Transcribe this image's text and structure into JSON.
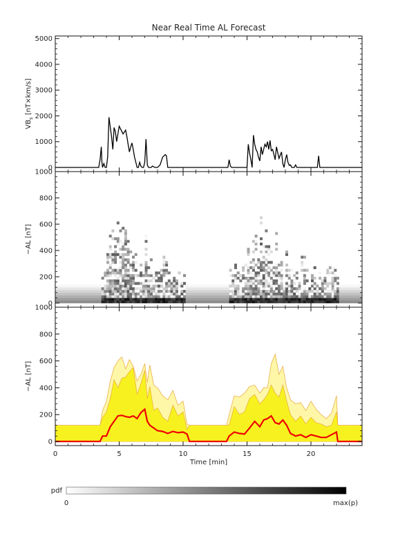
{
  "title": "Near Real Time AL Forecast",
  "colorbar": {
    "label": "pdf",
    "min_label": "0",
    "max_label": "max(p)"
  },
  "colors": {
    "line": "#000000",
    "median": "#ee0000",
    "band_inner": "#f7f21f",
    "band_mid": "#fff7a8",
    "band_outer": "#e8a63a"
  },
  "chart_data": [
    {
      "id": "vbs",
      "type": "line",
      "title": "Near Real Time AL Forecast",
      "ylabel": "VB_s [nT×km/s]",
      "ylabel_main": "VB",
      "ylabel_sub": "s",
      "ylabel_rest": " [nT×km/s]",
      "xlabel": "",
      "xlim": [
        0,
        24
      ],
      "ylim": [
        0,
        5100
      ],
      "yticks": [
        0,
        1000,
        2000,
        3000,
        4000,
        5000
      ],
      "x": [
        0,
        3.4,
        3.5,
        3.6,
        3.65,
        3.7,
        3.8,
        3.9,
        4.0,
        4.1,
        4.2,
        4.4,
        4.5,
        4.6,
        4.7,
        4.8,
        5.0,
        5.2,
        5.3,
        5.5,
        5.6,
        5.7,
        5.8,
        5.9,
        6.0,
        6.1,
        6.2,
        6.3,
        6.4,
        6.5,
        6.6,
        6.7,
        6.8,
        6.9,
        7.0,
        7.1,
        7.2,
        7.3,
        7.35,
        7.4,
        7.5,
        7.6,
        7.8,
        8.0,
        8.2,
        8.4,
        8.6,
        8.7,
        8.8,
        8.9,
        9.0,
        9.2,
        13.5,
        13.6,
        13.7,
        13.8,
        15.0,
        15.1,
        15.2,
        15.3,
        15.4,
        15.5,
        15.6,
        15.7,
        15.8,
        15.9,
        16.0,
        16.1,
        16.2,
        16.3,
        16.4,
        16.5,
        16.6,
        16.7,
        16.8,
        16.9,
        17.0,
        17.1,
        17.2,
        17.3,
        17.5,
        17.7,
        17.8,
        17.9,
        18.0,
        18.1,
        18.2,
        18.3,
        18.4,
        18.5,
        18.6,
        18.7,
        18.8,
        18.9,
        19.0,
        20.5,
        20.6,
        20.7,
        24
      ],
      "y": [
        0,
        0,
        300,
        800,
        200,
        0,
        150,
        0,
        0,
        400,
        1950,
        1200,
        700,
        1550,
        1400,
        1000,
        1600,
        1400,
        1300,
        1450,
        1200,
        900,
        600,
        800,
        950,
        700,
        400,
        200,
        0,
        0,
        200,
        50,
        0,
        0,
        200,
        1100,
        100,
        0,
        0,
        0,
        0,
        50,
        0,
        0,
        100,
        400,
        500,
        450,
        0,
        0,
        0,
        0,
        0,
        300,
        50,
        0,
        0,
        900,
        550,
        300,
        0,
        1250,
        900,
        700,
        600,
        400,
        250,
        800,
        500,
        700,
        900,
        800,
        1000,
        700,
        1050,
        650,
        700,
        500,
        300,
        800,
        350,
        600,
        150,
        0,
        300,
        500,
        200,
        80,
        100,
        0,
        0,
        0,
        100,
        0,
        0,
        0,
        450,
        0,
        0
      ]
    },
    {
      "id": "al_pdf",
      "type": "heatmap",
      "ylabel": "−AL [nT]",
      "xlabel": "",
      "xlim": [
        0,
        24
      ],
      "ylim": [
        0,
        1000
      ],
      "yticks": [
        0,
        200,
        400,
        600,
        800,
        1000
      ],
      "active_intervals": [
        [
          3.6,
          10.2
        ],
        [
          13.6,
          22.0
        ]
      ]
    },
    {
      "id": "al_forecast",
      "type": "area",
      "ylabel": "−AL [nT]",
      "xlabel": "Time [min]",
      "xlim": [
        0,
        24
      ],
      "ylim": [
        0,
        1000
      ],
      "yticks": [
        0,
        200,
        400,
        600,
        800,
        1000
      ],
      "xticks": [
        0,
        5,
        10,
        15,
        20
      ],
      "x": [
        0,
        3.5,
        3.7,
        4.0,
        4.3,
        4.6,
        4.9,
        5.2,
        5.5,
        5.8,
        6.1,
        6.4,
        6.7,
        7.0,
        7.2,
        7.4,
        7.7,
        8.0,
        8.4,
        8.8,
        9.2,
        9.6,
        10.0,
        10.3,
        10.5,
        13.4,
        13.6,
        14.0,
        14.4,
        14.8,
        15.2,
        15.6,
        16.0,
        16.3,
        16.6,
        16.9,
        17.2,
        17.5,
        17.8,
        18.1,
        18.4,
        18.8,
        19.2,
        19.6,
        20.0,
        20.4,
        20.8,
        21.2,
        21.6,
        22.0,
        22.1,
        24
      ],
      "median": [
        0,
        0,
        40,
        40,
        110,
        150,
        190,
        195,
        185,
        180,
        190,
        170,
        215,
        240,
        150,
        120,
        100,
        80,
        75,
        60,
        75,
        65,
        70,
        55,
        0,
        0,
        40,
        70,
        60,
        55,
        100,
        150,
        110,
        160,
        170,
        190,
        140,
        130,
        160,
        120,
        60,
        40,
        50,
        30,
        50,
        40,
        30,
        30,
        50,
        70,
        0,
        0
      ],
      "q_inner": [
        80,
        80,
        120,
        140,
        250,
        360,
        320,
        300,
        420,
        360,
        520,
        260,
        380,
        480,
        210,
        230,
        120,
        140,
        90,
        90,
        140,
        80,
        140,
        70,
        80,
        80,
        60,
        120,
        90,
        100,
        170,
        190,
        140,
        240,
        250,
        380,
        230,
        190,
        310,
        160,
        90,
        60,
        100,
        50,
        90,
        70,
        50,
        50,
        70,
        150,
        80,
        80
      ],
      "q_mid": [
        120,
        120,
        180,
        220,
        320,
        460,
        400,
        470,
        480,
        520,
        550,
        350,
        430,
        530,
        320,
        410,
        230,
        250,
        180,
        150,
        270,
        190,
        220,
        90,
        120,
        120,
        120,
        260,
        200,
        220,
        320,
        350,
        280,
        310,
        350,
        420,
        360,
        330,
        420,
        300,
        200,
        150,
        190,
        130,
        180,
        140,
        130,
        110,
        120,
        220,
        120,
        120
      ],
      "q_outer": [
        120,
        120,
        230,
        300,
        450,
        550,
        600,
        630,
        540,
        610,
        560,
        450,
        500,
        580,
        440,
        570,
        420,
        400,
        340,
        310,
        380,
        270,
        300,
        130,
        120,
        120,
        200,
        340,
        330,
        360,
        410,
        420,
        360,
        400,
        400,
        580,
        650,
        500,
        560,
        400,
        310,
        280,
        290,
        230,
        300,
        240,
        200,
        170,
        210,
        340,
        120,
        120
      ]
    }
  ]
}
